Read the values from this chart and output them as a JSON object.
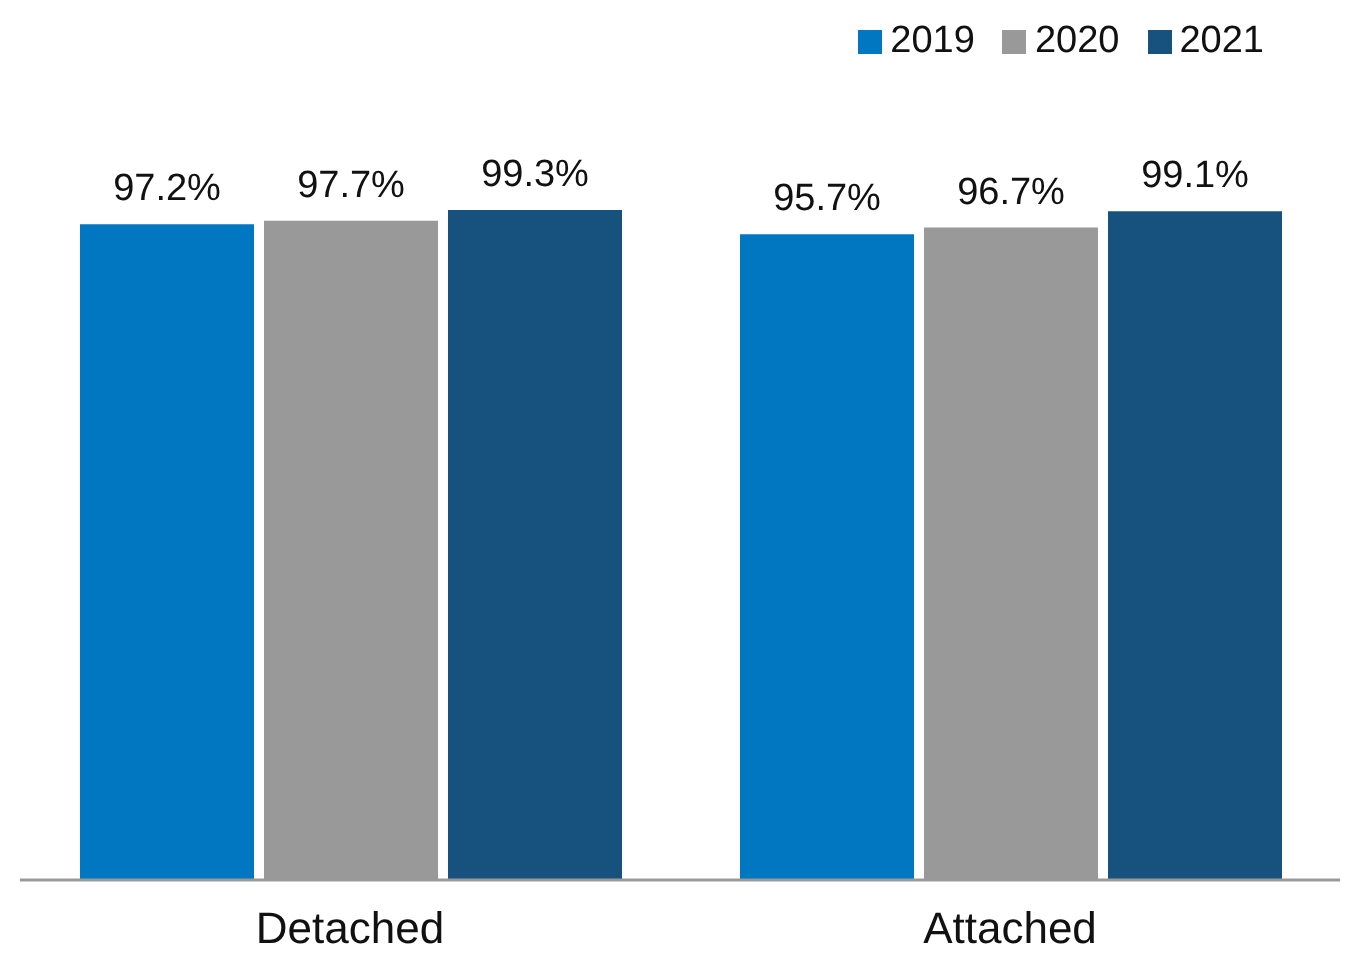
{
  "chart_data": {
    "type": "bar",
    "categories": [
      "Detached",
      "Attached"
    ],
    "series": [
      {
        "name": "2019",
        "color": "#0077c0",
        "values": [
          97.2,
          95.7
        ],
        "value_labels": [
          "97.2%",
          "95.7%"
        ]
      },
      {
        "name": "2020",
        "color": "#999999",
        "values": [
          97.7,
          96.7
        ],
        "value_labels": [
          "97.7%",
          "96.7%"
        ]
      },
      {
        "name": "2021",
        "color": "#17527e",
        "values": [
          99.3,
          99.1
        ],
        "value_labels": [
          "99.3%",
          "99.1%"
        ]
      }
    ],
    "legend": "top right",
    "grid": false
  }
}
